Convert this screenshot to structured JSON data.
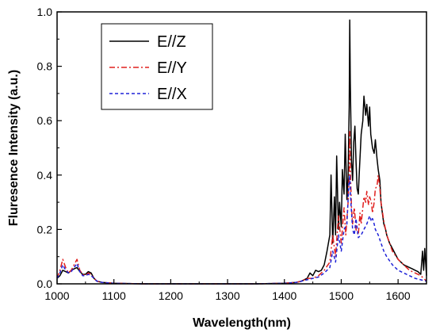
{
  "chart_data": {
    "type": "line",
    "title": "",
    "xlabel": "Wavelength(nm)",
    "ylabel": "Fluresence Intensity (a.u.)",
    "xlim": [
      1000,
      1650
    ],
    "ylim": [
      0.0,
      1.0
    ],
    "xticks": [
      1000,
      1100,
      1200,
      1300,
      1400,
      1500,
      1600
    ],
    "yticks": [
      0.0,
      0.2,
      0.4,
      0.6,
      0.8,
      1.0
    ],
    "xtick_labels": [
      "1000",
      "1100",
      "1200",
      "1300",
      "1400",
      "1500",
      "1600"
    ],
    "ytick_labels": [
      "0.0",
      "0.2",
      "0.4",
      "0.6",
      "0.8",
      "1.0"
    ],
    "grid": false,
    "legend_position": "top-left",
    "series": [
      {
        "name": "E//Z",
        "color": "#000000",
        "dash": "solid",
        "x": [
          1000,
          1005,
          1010,
          1015,
          1020,
          1025,
          1030,
          1035,
          1040,
          1045,
          1050,
          1055,
          1060,
          1065,
          1070,
          1080,
          1100,
          1150,
          1200,
          1250,
          1300,
          1350,
          1400,
          1420,
          1430,
          1440,
          1445,
          1450,
          1455,
          1460,
          1465,
          1470,
          1475,
          1480,
          1482,
          1485,
          1488,
          1490,
          1492,
          1495,
          1497,
          1500,
          1502,
          1505,
          1507,
          1510,
          1512,
          1514,
          1515,
          1516,
          1518,
          1520,
          1522,
          1524,
          1526,
          1528,
          1530,
          1532,
          1535,
          1538,
          1540,
          1543,
          1545,
          1548,
          1550,
          1552,
          1555,
          1558,
          1560,
          1563,
          1565,
          1568,
          1570,
          1573,
          1575,
          1578,
          1580,
          1585,
          1590,
          1595,
          1600,
          1605,
          1610,
          1615,
          1620,
          1625,
          1630,
          1635,
          1640,
          1643,
          1645,
          1647,
          1650
        ],
        "y": [
          0.02,
          0.03,
          0.05,
          0.045,
          0.04,
          0.05,
          0.055,
          0.06,
          0.045,
          0.035,
          0.035,
          0.045,
          0.04,
          0.02,
          0.01,
          0.005,
          0.002,
          0.0,
          0.0,
          0.0,
          0.0,
          0.0,
          0.002,
          0.005,
          0.01,
          0.02,
          0.04,
          0.03,
          0.05,
          0.045,
          0.05,
          0.07,
          0.12,
          0.18,
          0.4,
          0.15,
          0.32,
          0.18,
          0.47,
          0.2,
          0.3,
          0.21,
          0.42,
          0.33,
          0.55,
          0.31,
          0.4,
          0.65,
          0.97,
          0.74,
          0.45,
          0.38,
          0.52,
          0.58,
          0.45,
          0.35,
          0.33,
          0.42,
          0.55,
          0.6,
          0.69,
          0.62,
          0.66,
          0.58,
          0.65,
          0.55,
          0.5,
          0.48,
          0.53,
          0.46,
          0.42,
          0.38,
          0.3,
          0.25,
          0.22,
          0.2,
          0.18,
          0.15,
          0.13,
          0.11,
          0.09,
          0.08,
          0.07,
          0.065,
          0.06,
          0.055,
          0.05,
          0.045,
          0.035,
          0.12,
          0.05,
          0.13,
          0.03
        ]
      },
      {
        "name": "E//Y",
        "color": "#e0201e",
        "dash": "dashdot",
        "x": [
          1000,
          1005,
          1010,
          1015,
          1020,
          1025,
          1030,
          1035,
          1040,
          1045,
          1050,
          1055,
          1060,
          1065,
          1070,
          1080,
          1100,
          1150,
          1200,
          1250,
          1300,
          1350,
          1400,
          1420,
          1430,
          1440,
          1450,
          1460,
          1470,
          1480,
          1485,
          1490,
          1495,
          1500,
          1505,
          1508,
          1512,
          1514,
          1515,
          1516,
          1518,
          1520,
          1523,
          1526,
          1530,
          1533,
          1535,
          1538,
          1540,
          1543,
          1545,
          1548,
          1550,
          1553,
          1555,
          1558,
          1560,
          1563,
          1565,
          1568,
          1570,
          1575,
          1580,
          1590,
          1600,
          1610,
          1620,
          1630,
          1640,
          1645,
          1650
        ],
        "y": [
          0.02,
          0.05,
          0.09,
          0.06,
          0.04,
          0.05,
          0.07,
          0.09,
          0.05,
          0.035,
          0.03,
          0.04,
          0.035,
          0.02,
          0.01,
          0.005,
          0.002,
          0.0,
          0.0,
          0.0,
          0.0,
          0.0,
          0.002,
          0.005,
          0.01,
          0.02,
          0.02,
          0.03,
          0.05,
          0.08,
          0.18,
          0.1,
          0.25,
          0.15,
          0.28,
          0.18,
          0.3,
          0.4,
          0.56,
          0.42,
          0.28,
          0.22,
          0.28,
          0.2,
          0.18,
          0.26,
          0.22,
          0.28,
          0.32,
          0.3,
          0.34,
          0.29,
          0.32,
          0.3,
          0.26,
          0.3,
          0.35,
          0.36,
          0.4,
          0.35,
          0.3,
          0.23,
          0.18,
          0.12,
          0.09,
          0.07,
          0.05,
          0.04,
          0.03,
          0.02,
          0.01
        ]
      },
      {
        "name": "E//X",
        "color": "#1f22d8",
        "dash": "dashed",
        "x": [
          1000,
          1005,
          1010,
          1015,
          1020,
          1025,
          1030,
          1035,
          1040,
          1045,
          1050,
          1055,
          1060,
          1065,
          1070,
          1080,
          1100,
          1150,
          1200,
          1250,
          1300,
          1350,
          1400,
          1420,
          1430,
          1440,
          1450,
          1460,
          1470,
          1480,
          1485,
          1490,
          1495,
          1500,
          1505,
          1510,
          1513,
          1515,
          1517,
          1520,
          1523,
          1526,
          1530,
          1535,
          1540,
          1545,
          1550,
          1553,
          1555,
          1558,
          1560,
          1565,
          1570,
          1575,
          1580,
          1590,
          1600,
          1610,
          1620,
          1630,
          1640,
          1650
        ],
        "y": [
          0.02,
          0.04,
          0.07,
          0.05,
          0.04,
          0.045,
          0.06,
          0.075,
          0.045,
          0.03,
          0.03,
          0.035,
          0.03,
          0.02,
          0.01,
          0.005,
          0.002,
          0.0,
          0.0,
          0.0,
          0.0,
          0.0,
          0.002,
          0.005,
          0.01,
          0.015,
          0.02,
          0.025,
          0.04,
          0.06,
          0.12,
          0.08,
          0.18,
          0.12,
          0.2,
          0.22,
          0.35,
          0.4,
          0.3,
          0.2,
          0.18,
          0.24,
          0.17,
          0.18,
          0.2,
          0.22,
          0.25,
          0.23,
          0.24,
          0.22,
          0.2,
          0.18,
          0.15,
          0.12,
          0.1,
          0.07,
          0.05,
          0.04,
          0.03,
          0.02,
          0.015,
          0.01
        ]
      }
    ]
  }
}
